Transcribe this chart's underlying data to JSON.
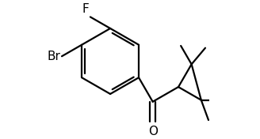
{
  "background_color": "#ffffff",
  "line_color": "#000000",
  "line_width": 1.6,
  "figsize": [
    3.28,
    1.76
  ],
  "dpi": 100,
  "F_label": "F",
  "Br_label": "Br",
  "O_label": "O",
  "font_size": 11
}
